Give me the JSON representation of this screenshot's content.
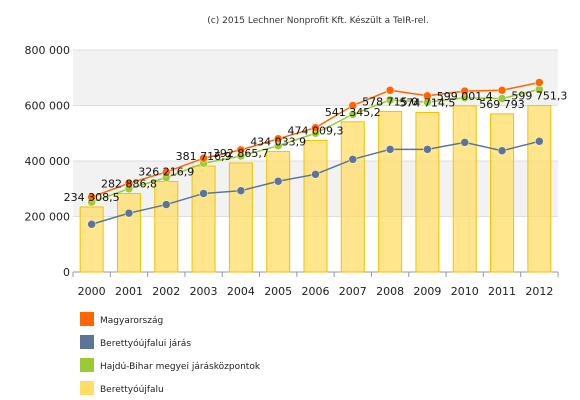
{
  "credit": "(c) 2015 Lechner Nonprofit Kft. Készült a TeIR-rel.",
  "chart_data": {
    "type": "bar",
    "title": "",
    "xlabel": "",
    "ylabel": "",
    "ylim": [
      0,
      800000
    ],
    "grid": true,
    "legend_position": "bottom-left",
    "categories": [
      "2000",
      "2001",
      "2002",
      "2003",
      "2004",
      "2005",
      "2006",
      "2007",
      "2008",
      "2009",
      "2010",
      "2011",
      "2012"
    ],
    "y_ticks": [
      0,
      200000,
      400000,
      600000,
      800000
    ],
    "y_tick_labels": [
      "0",
      "200 000",
      "400 000",
      "600 000",
      "800 000"
    ],
    "series": [
      {
        "name": "Magyarország",
        "type": "line",
        "color": "#ff6600",
        "values": [
          270000,
          320000,
          360000,
          410000,
          440000,
          480000,
          520000,
          600000,
          655000,
          635000,
          652000,
          655000,
          683000
        ]
      },
      {
        "name": "Berettyóújfalui járás",
        "type": "line",
        "color": "#5b7594",
        "values": [
          172000,
          212000,
          243000,
          283000,
          293000,
          327000,
          352000,
          406000,
          442000,
          442000,
          467000,
          437000,
          471000
        ]
      },
      {
        "name": "Hajdú-Bihar megyei járásközpontok",
        "type": "line",
        "color": "#99cc33",
        "values": [
          252000,
          300000,
          340000,
          392000,
          418000,
          455000,
          500000,
          568000,
          620000,
          612000,
          628000,
          625000,
          658000
        ]
      },
      {
        "name": "Berettyóújfalu",
        "type": "bar",
        "color": "#ffdd66",
        "values": [
          234308.5,
          282886.8,
          326216.9,
          381716.9,
          392865.7,
          434033.9,
          474009.3,
          541345.2,
          578715.0,
          574714.5,
          599001.4,
          569793.0,
          599751.3
        ],
        "labels": [
          "234 308,5",
          "282 886,8",
          "326 216,9",
          "381 716,9",
          "392 865,7",
          "434 033,9",
          "474 009,3",
          "541 345,2",
          "578 715,0",
          "574 714,5",
          "599 001,4",
          "569 793",
          "599 751,3"
        ]
      }
    ]
  }
}
